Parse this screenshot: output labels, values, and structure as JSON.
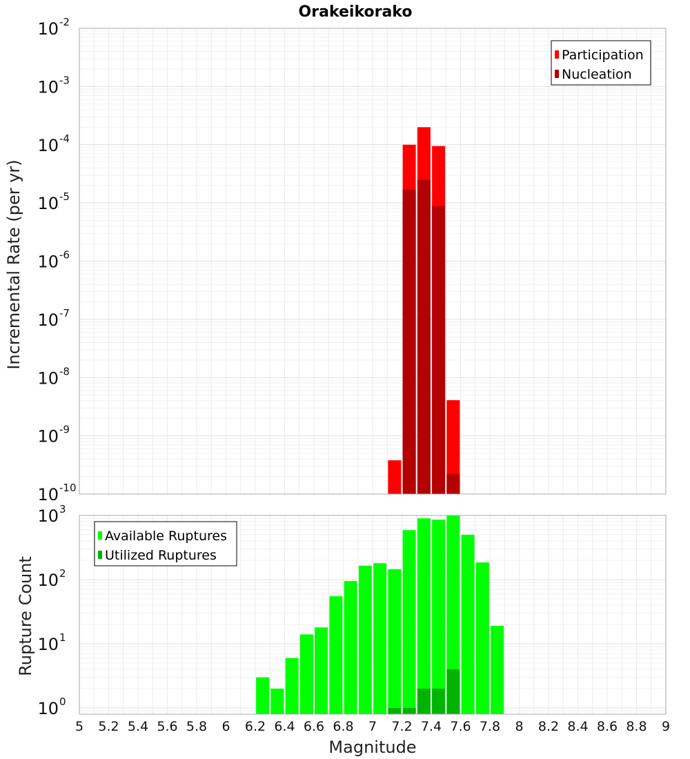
{
  "chart_data": [
    {
      "type": "bar",
      "title": "Orakeikorako",
      "ylabel": "Incremental Rate (per yr)",
      "xlabel": "",
      "x_range": [
        5,
        9
      ],
      "y_scale": "log",
      "ylim": [
        1e-10,
        0.01
      ],
      "y_tick_mantissa": "10",
      "y_tick_exponents": [
        "-10",
        "-9",
        "-8",
        "-7",
        "-6",
        "-5",
        "-4",
        "-3",
        "-2"
      ],
      "grid": true,
      "legend_position": "top-right",
      "series": [
        {
          "name": "Participation",
          "color": "#ff0000",
          "x": [
            7.15,
            7.25,
            7.35,
            7.45,
            7.55
          ],
          "values": [
            3.8e-10,
            0.0001,
            0.0002,
            9.5e-05,
            4.1e-09
          ]
        },
        {
          "name": "Nucleation",
          "color": "#b30000",
          "x": [
            7.25,
            7.35,
            7.45,
            7.55
          ],
          "values": [
            1.7e-05,
            2.5e-05,
            8.8e-06,
            2.2e-10
          ]
        }
      ]
    },
    {
      "type": "bar",
      "title": "",
      "ylabel": "Rupture Count",
      "xlabel": "Magnitude",
      "x_range": [
        5,
        9
      ],
      "x_ticks": [
        "5",
        "5.2",
        "5.4",
        "5.6",
        "5.8",
        "6",
        "6.2",
        "6.4",
        "6.6",
        "6.8",
        "7",
        "7.2",
        "7.4",
        "7.6",
        "7.8",
        "8",
        "8.2",
        "8.4",
        "8.6",
        "8.8",
        "9"
      ],
      "y_scale": "log",
      "ylim": [
        0.8,
        1000
      ],
      "y_tick_mantissa": "10",
      "y_tick_exponents": [
        "0",
        "1",
        "2",
        "3"
      ],
      "grid": true,
      "legend_position": "top-left",
      "series": [
        {
          "name": "Available Ruptures",
          "color": "#00ff00",
          "x": [
            6.25,
            6.35,
            6.45,
            6.55,
            6.65,
            6.75,
            6.85,
            6.95,
            7.05,
            7.15,
            7.25,
            7.35,
            7.45,
            7.55,
            7.65,
            7.75,
            7.85
          ],
          "values": [
            3,
            2,
            6,
            14,
            18,
            55,
            95,
            165,
            180,
            145,
            590,
            900,
            860,
            1000,
            500,
            185,
            19
          ]
        },
        {
          "name": "Utilized Ruptures",
          "color": "#00b300",
          "x": [
            7.15,
            7.25,
            7.35,
            7.45,
            7.55
          ],
          "values": [
            1,
            1,
            2,
            2,
            4
          ]
        }
      ]
    }
  ]
}
